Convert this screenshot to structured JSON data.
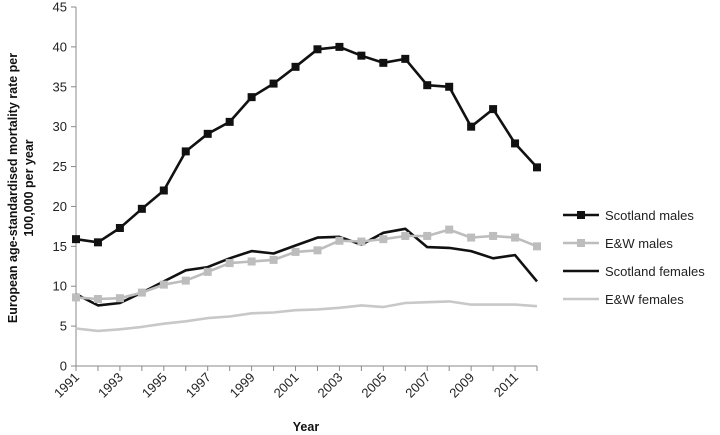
{
  "chart_data": {
    "type": "line",
    "xlabel": "Year",
    "ylabel": "European age-standardised  mortality rate per 100,000 per year",
    "ylabel_lines": [
      "European age-standardised  mortality rate per",
      "100,000 per year"
    ],
    "ylim": [
      0,
      45
    ],
    "yticks": [
      0,
      5,
      10,
      15,
      20,
      25,
      30,
      35,
      40,
      45
    ],
    "xlim": [
      1991,
      2012
    ],
    "xtick_labels": [
      1991,
      1993,
      1995,
      1997,
      1999,
      2001,
      2003,
      2005,
      2007,
      2009,
      2011
    ],
    "x": [
      1991,
      1992,
      1993,
      1994,
      1995,
      1996,
      1997,
      1998,
      1999,
      2000,
      2001,
      2002,
      2003,
      2004,
      2005,
      2006,
      2007,
      2008,
      2009,
      2010,
      2011,
      2012
    ],
    "grid": false,
    "legend_position": "right",
    "series": [
      {
        "name": "Scotland males",
        "color": "#111111",
        "marker": "square",
        "values": [
          15.9,
          15.5,
          17.3,
          19.7,
          22.0,
          26.9,
          29.1,
          30.6,
          33.7,
          35.4,
          37.5,
          39.7,
          40.0,
          38.9,
          38.0,
          38.5,
          35.2,
          35.0,
          30.0,
          32.2,
          27.9,
          24.9
        ]
      },
      {
        "name": "E&W males",
        "color": "#bdbdbd",
        "marker": "square",
        "values": [
          8.6,
          8.4,
          8.5,
          9.2,
          10.2,
          10.7,
          11.8,
          12.9,
          13.1,
          13.3,
          14.3,
          14.5,
          15.7,
          15.6,
          15.9,
          16.3,
          16.3,
          17.1,
          16.1,
          16.3,
          16.1,
          15.0
        ]
      },
      {
        "name": "Scotland females",
        "color": "#111111",
        "marker": "none",
        "values": [
          9.0,
          7.6,
          7.9,
          9.2,
          10.6,
          12.0,
          12.4,
          13.5,
          14.4,
          14.1,
          15.1,
          16.1,
          16.2,
          15.2,
          16.7,
          17.2,
          14.9,
          14.8,
          14.4,
          13.5,
          13.9,
          10.6
        ]
      },
      {
        "name": "E&W females",
        "color": "#c8c8c8",
        "marker": "none",
        "values": [
          4.7,
          4.4,
          4.6,
          4.9,
          5.3,
          5.6,
          6.0,
          6.2,
          6.6,
          6.7,
          7.0,
          7.1,
          7.3,
          7.6,
          7.4,
          7.9,
          8.0,
          8.1,
          7.7,
          7.7,
          7.7,
          7.5
        ]
      }
    ]
  }
}
